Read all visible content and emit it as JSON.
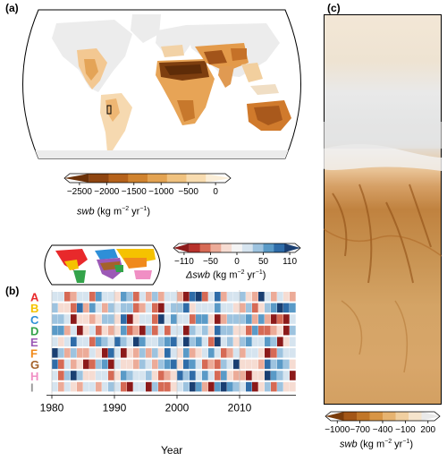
{
  "panels": {
    "a": {
      "label": "(a)",
      "colorbar": {
        "ticks": [
          "−2500",
          "−2000",
          "−1500",
          "−1000",
          "−500",
          "0"
        ],
        "title_var": "swb",
        "title_units": "(kg m",
        "title_exp1": "−2",
        "title_mid": " yr",
        "title_exp2": "−1",
        "title_end": ")",
        "colors": [
          "#6b3108",
          "#8f4510",
          "#b5621b",
          "#d0832f",
          "#e3a352",
          "#f0c27f",
          "#f8dcb0",
          "#fbeed8"
        ]
      }
    },
    "b": {
      "label": "(b)",
      "rows": [
        {
          "label": "A",
          "color": "#e8292b"
        },
        {
          "label": "B",
          "color": "#f5c200"
        },
        {
          "label": "C",
          "color": "#2e8fd8"
        },
        {
          "label": "D",
          "color": "#33a34a"
        },
        {
          "label": "E",
          "color": "#9c59b6"
        },
        {
          "label": "F",
          "color": "#f08a1c"
        },
        {
          "label": "G",
          "color": "#a4622a"
        },
        {
          "label": "H",
          "color": "#f08fc4"
        },
        {
          "label": "I",
          "color": "#9a9a9a"
        }
      ],
      "xticks": [
        "1980",
        "1990",
        "2000",
        "2010"
      ],
      "xlabel": "Year",
      "colorbar": {
        "ticks": [
          "−110",
          "−50",
          "0",
          "50",
          "110"
        ],
        "title_var": "Δswb",
        "title_units": "(kg m",
        "title_exp1": "−2",
        "title_mid": " yr",
        "title_exp2": "−1",
        "title_end": ")",
        "colors": [
          "#8c1a1a",
          "#b8312b",
          "#d66a55",
          "#ecab98",
          "#f6dcd2",
          "#f4f4f4",
          "#d6e4ef",
          "#9dc3df",
          "#5a9ac7",
          "#2f6ca8",
          "#1a3f72"
        ]
      }
    },
    "c": {
      "label": "(c)",
      "colorbar": {
        "ticks": [
          "−1000",
          "−700",
          "−400",
          "−100",
          "200"
        ],
        "title_var": "swb",
        "title_units": "(kg m",
        "title_exp1": "−2",
        "title_mid": " yr",
        "title_exp2": "−1",
        "title_end": ")",
        "colors": [
          "#7a3c0b",
          "#a35616",
          "#c17628",
          "#d89545",
          "#e6b370",
          "#f0cfa0",
          "#f5e4cc",
          "#e9e9e9"
        ]
      }
    }
  }
}
